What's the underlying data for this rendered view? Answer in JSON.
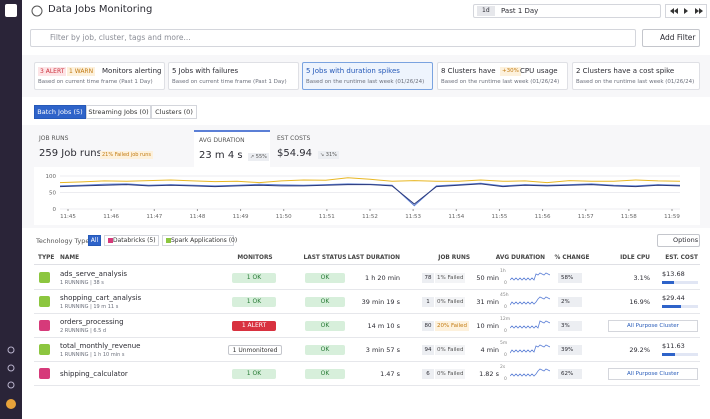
{
  "header": {
    "title": "Data Jobs Monitoring",
    "time_badge": "1d",
    "time_range": "Past 1 Day"
  },
  "filter": {
    "placeholder": "Filter by job, cluster, tags and more...",
    "add_button": "Add Filter"
  },
  "cards": [
    {
      "badges": [
        "3 ALERT",
        "1 WARN"
      ],
      "title": "Monitors alerting",
      "sub": "Based on current time frame (Past 1 Day)"
    },
    {
      "title": "5 Jobs with failures",
      "sub": "Based on current time frame (Past 1 Day)"
    },
    {
      "title": "5 Jobs with duration spikes",
      "sub": "Based on the runtime last week (01/26/24)",
      "selected": true
    },
    {
      "title": "8 Clusters have",
      "badge": "+30%",
      "title_end": "CPU usage",
      "sub": "Based on the runtime last week (01/26/24)"
    },
    {
      "title": "2 Clusters have a cost spike",
      "sub": "Based on the runtime last week (01/26/24)"
    }
  ],
  "tabs": [
    "Batch Jobs (5)",
    "Streaming Jobs (0)",
    "Clusters (0)"
  ],
  "metrics": [
    {
      "label": "JOB RUNS",
      "value": "259 Job runs",
      "badge": "21% Failed job runs"
    },
    {
      "label": "AVG DURATION",
      "value": "23 m 4 s",
      "badge": "↗ 55%"
    },
    {
      "label": "EST COSTS",
      "value": "$54.94",
      "badge": "↘ 31%"
    }
  ],
  "chart": {
    "type": "line",
    "ylim": [
      0,
      100
    ],
    "yticks": [
      0,
      50,
      100
    ],
    "xticks": [
      "11:45",
      "11:46",
      "11:47",
      "11:48",
      "11:49",
      "11:50",
      "11:51",
      "11:52",
      "11:53",
      "11:54",
      "11:55",
      "11:56",
      "11:57",
      "11:58",
      "11:59"
    ],
    "series": [
      {
        "color": "#e8b724",
        "values": [
          80,
          82,
          85,
          84,
          86,
          88,
          85,
          83,
          84,
          80,
          85,
          88,
          87,
          95,
          90,
          84,
          86,
          84,
          84,
          88,
          84,
          85,
          80,
          86,
          84,
          84,
          88,
          85,
          84
        ]
      },
      {
        "color": "#5b7fd6",
        "values": [
          70,
          72,
          75,
          76,
          72,
          74,
          72,
          70,
          72,
          75,
          73,
          72,
          74,
          76,
          75,
          72,
          10,
          70,
          74,
          78,
          70,
          74,
          72,
          74,
          76,
          72,
          70,
          74,
          72
        ]
      },
      {
        "color": "#2c3a7a",
        "values": [
          68,
          70,
          72,
          74,
          70,
          72,
          70,
          68,
          70,
          72,
          70,
          70,
          72,
          74,
          74,
          70,
          15,
          68,
          72,
          76,
          68,
          72,
          70,
          72,
          74,
          70,
          68,
          72,
          70
        ]
      }
    ]
  },
  "tech": {
    "label": "Technology Type",
    "options": [
      "All",
      "Databricks (5)",
      "Spark Applications (0)"
    ],
    "button": "Options"
  },
  "table": {
    "columns": [
      "TYPE",
      "NAME",
      "MONITORS",
      "LAST STATUS",
      "LAST DURATION",
      "JOB RUNS",
      "AVG DURATION",
      "% CHANGE",
      "IDLE CPU",
      "EST. COST"
    ],
    "rows": [
      {
        "icon_color": "#8cc63f",
        "name": "ads_serve_analysis",
        "status": "1 RUNNING | 38 s",
        "monitor": "1 OK",
        "last_status": "OK",
        "last_duration": "1 h 20 min",
        "runs": "78",
        "failed": "1% Failed",
        "avg": "50 min",
        "spark_max": "1h",
        "spark_min": "0",
        "change": "58%",
        "idle_cpu": "3.1%",
        "cost": "$13.68"
      },
      {
        "icon_color": "#8cc63f",
        "name": "shopping_cart_analysis",
        "status": "1 RUNNING | 19 m 11 s",
        "monitor": "1 OK",
        "last_status": "OK",
        "last_duration": "39 min 19 s",
        "runs": "1",
        "failed": "0% Failed",
        "avg": "31 min",
        "spark_max": "45h",
        "spark_min": "0",
        "change": "2%",
        "idle_cpu": "16.9%",
        "cost": "$29.44"
      },
      {
        "icon_color": "#d63a7a",
        "name": "orders_processing",
        "status": "2 RUNNING | 6.5 d",
        "monitor": "1 ALERT",
        "alert": true,
        "last_status": "OK",
        "last_duration": "14 m 10 s",
        "runs": "80",
        "failed": "20% Failed",
        "avg": "10 min",
        "spark_max": "12m",
        "spark_min": "0",
        "change": "3%",
        "cluster": "All Purpose Cluster"
      },
      {
        "icon_color": "#8cc63f",
        "name": "total_monthly_revenue",
        "status": "1 RUNNING | 1 h 10 min s",
        "monitor": "1 Unmonitored",
        "unmonitored": true,
        "last_status": "OK",
        "last_duration": "3 min 57 s",
        "runs": "94",
        "failed": "0% Failed",
        "avg": "4 min",
        "spark_max": "5m",
        "spark_min": "0",
        "change": "39%",
        "idle_cpu": "29.2%",
        "cost": "$11.63"
      },
      {
        "icon_color": "#d63a7a",
        "name": "shipping_calculator",
        "monitor": "1 OK",
        "last_status": "OK",
        "last_duration": "1.47 s",
        "runs": "6",
        "failed": "0% Failed",
        "avg": "1.82 s",
        "spark_max": "2s",
        "spark_min": "0",
        "change": "62%",
        "cluster": "All Purpose Cluster"
      }
    ]
  }
}
